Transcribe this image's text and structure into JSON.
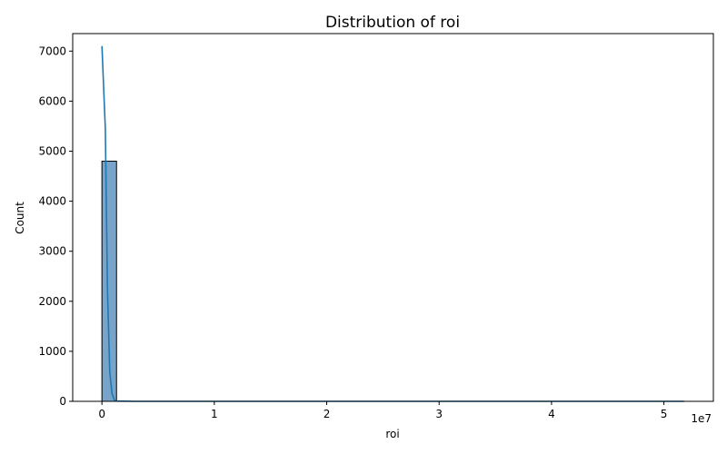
{
  "chart_data": {
    "type": "bar",
    "title": "Distribution of roi",
    "xlabel": "roi",
    "ylabel": "Count",
    "x_offset_label": "1e7",
    "xlim": [
      -2600000,
      54400000
    ],
    "ylim": [
      0,
      7350
    ],
    "x_ticks": [
      {
        "value": 0,
        "label": "0"
      },
      {
        "value": 10000000,
        "label": "1"
      },
      {
        "value": 20000000,
        "label": "2"
      },
      {
        "value": 30000000,
        "label": "3"
      },
      {
        "value": 40000000,
        "label": "4"
      },
      {
        "value": 50000000,
        "label": "5"
      }
    ],
    "y_ticks": [
      0,
      1000,
      2000,
      3000,
      4000,
      5000,
      6000,
      7000
    ],
    "bins": [
      {
        "x0": 0,
        "x1": 1300000,
        "count": 4800
      },
      {
        "x0": 1300000,
        "x1": 51800000,
        "count": 0
      }
    ],
    "kde": {
      "name": "KDE",
      "x": [
        0,
        300000,
        500000,
        700000,
        900000,
        1100000,
        1300000,
        3000000,
        51800000
      ],
      "y": [
        7100,
        5450,
        2200,
        580,
        150,
        30,
        5,
        0,
        0
      ]
    },
    "colors": {
      "bar_fill": "#77a4c8",
      "bar_edge": "#000000",
      "kde_line": "#1f77b4",
      "axes": "#000000"
    },
    "grid": false
  }
}
